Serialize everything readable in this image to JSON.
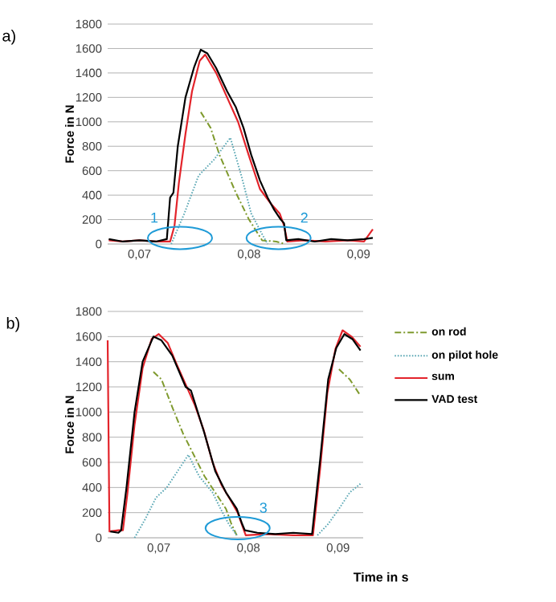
{
  "chart_data": [
    {
      "type": "line",
      "title": "a)",
      "ylabel": "Force in N",
      "xlim": [
        0.0671,
        0.0913
      ],
      "ylim": [
        0,
        1800
      ],
      "xticks": [
        {
          "value": 0.07,
          "label": "0,07"
        },
        {
          "value": 0.08,
          "label": "0,08"
        },
        {
          "value": 0.09,
          "label": "0,09"
        }
      ],
      "yticks": [
        0,
        200,
        400,
        600,
        800,
        1000,
        1200,
        1400,
        1600,
        1800
      ],
      "grid": "y",
      "legend": false,
      "series": [
        {
          "color": "#7f9a2e",
          "line_style": "dashed",
          "x": [
            0.0756,
            0.0765,
            0.0773,
            0.0788,
            0.08,
            0.0812,
            0.0825,
            0.0833
          ],
          "values": [
            1080,
            950,
            730,
            420,
            200,
            30,
            20,
            0
          ]
        },
        {
          "color": "#5aa7b4",
          "line_style": "dotted",
          "x": [
            0.0729,
            0.0741,
            0.0754,
            0.0768,
            0.0783,
            0.0793,
            0.0802,
            0.0812,
            0.0817
          ],
          "values": [
            0,
            250,
            560,
            690,
            870,
            560,
            250,
            80,
            0
          ]
        },
        {
          "color": "#e3242b",
          "line_style": "solid",
          "x": [
            0.0672,
            0.0685,
            0.07,
            0.0715,
            0.0728,
            0.0732,
            0.0736,
            0.0742,
            0.0748,
            0.0755,
            0.076,
            0.077,
            0.078,
            0.079,
            0.08,
            0.081,
            0.082,
            0.0828,
            0.0832,
            0.0835,
            0.085,
            0.087,
            0.089,
            0.0905,
            0.0913
          ],
          "values": [
            30,
            20,
            30,
            20,
            20,
            150,
            500,
            900,
            1250,
            1500,
            1550,
            1400,
            1200,
            1000,
            720,
            450,
            330,
            250,
            150,
            20,
            30,
            20,
            30,
            20,
            120
          ]
        },
        {
          "color": "#000000",
          "line_style": "solid",
          "x": [
            0.0672,
            0.0685,
            0.07,
            0.0715,
            0.0725,
            0.0728,
            0.0731,
            0.0735,
            0.0742,
            0.075,
            0.0756,
            0.0762,
            0.077,
            0.078,
            0.0788,
            0.0795,
            0.0802,
            0.081,
            0.0817,
            0.0823,
            0.0829,
            0.0832,
            0.0834,
            0.0845,
            0.086,
            0.0875,
            0.089,
            0.0905,
            0.0913
          ],
          "values": [
            40,
            20,
            30,
            20,
            40,
            380,
            420,
            800,
            1200,
            1450,
            1590,
            1560,
            1440,
            1250,
            1120,
            950,
            730,
            520,
            380,
            280,
            200,
            170,
            30,
            40,
            20,
            40,
            30,
            40,
            50
          ]
        }
      ],
      "annotations": [
        {
          "text": "1",
          "x": 0.0737,
          "y": 50
        },
        {
          "text": "2",
          "x": 0.0827,
          "y": 50
        }
      ]
    },
    {
      "type": "line",
      "title": "b)",
      "xlabel": "Time in s",
      "ylabel": "Force in N",
      "xlim": [
        0.0643,
        0.0928
      ],
      "ylim": [
        0,
        1800
      ],
      "xticks": [
        {
          "value": 0.07,
          "label": "0,07"
        },
        {
          "value": 0.08,
          "label": "0,08"
        },
        {
          "value": 0.09,
          "label": "0,09"
        }
      ],
      "yticks": [
        0,
        200,
        400,
        600,
        800,
        1000,
        1200,
        1400,
        1600,
        1800
      ],
      "grid": "y",
      "legend": "right",
      "series": [
        {
          "name": "on rod",
          "color": "#7f9a2e",
          "line_style": "dashed",
          "x": [
            0.0694,
            0.0703,
            0.0715,
            0.0727,
            0.0739,
            0.0751,
            0.0763,
            0.0775,
            0.0781,
            0.0787
          ],
          "values": [
            1320,
            1260,
            1040,
            830,
            660,
            490,
            360,
            230,
            110,
            20
          ]
        },
        {
          "name": "on pilot hole",
          "color": "#5aa7b4",
          "line_style": "dotted",
          "x": [
            0.0673,
            0.0685,
            0.0697,
            0.0709,
            0.0721,
            0.0733,
            0.0745,
            0.076,
            0.0769,
            0.0778,
            0.0787
          ],
          "values": [
            0,
            150,
            320,
            400,
            530,
            660,
            490,
            360,
            230,
            110,
            20
          ]
        },
        {
          "name": "sum",
          "color": "#e3242b",
          "line_style": "solid",
          "x": [
            0.0643,
            0.0645,
            0.0655,
            0.066,
            0.0665,
            0.0673,
            0.0682,
            0.0692,
            0.07,
            0.071,
            0.072,
            0.073,
            0.074,
            0.075,
            0.076,
            0.077,
            0.078,
            0.0788,
            0.0793,
            0.0797,
            0.082,
            0.085,
            0.0872,
            0.088,
            0.0888,
            0.0897,
            0.0905,
            0.0915,
            0.0925
          ],
          "values": [
            1570,
            50,
            60,
            60,
            350,
            900,
            1350,
            1580,
            1620,
            1550,
            1380,
            1220,
            1060,
            860,
            600,
            420,
            300,
            200,
            100,
            20,
            30,
            20,
            20,
            550,
            1150,
            1500,
            1650,
            1600,
            1520
          ]
        },
        {
          "name": "VAD test",
          "color": "#000000",
          "line_style": "solid",
          "x": [
            0.0646,
            0.0655,
            0.0658,
            0.0664,
            0.0673,
            0.0682,
            0.0694,
            0.0703,
            0.0715,
            0.073,
            0.0736,
            0.0751,
            0.0763,
            0.0775,
            0.0787,
            0.0793,
            0.0796,
            0.081,
            0.083,
            0.085,
            0.0871,
            0.088,
            0.0889,
            0.0898,
            0.0907,
            0.0916,
            0.0925
          ],
          "values": [
            50,
            40,
            60,
            400,
            1000,
            1400,
            1600,
            1570,
            1450,
            1200,
            1170,
            830,
            530,
            360,
            230,
            110,
            60,
            40,
            30,
            40,
            30,
            620,
            1260,
            1510,
            1620,
            1580,
            1490
          ]
        },
        {
          "color": "#7f9a2e",
          "line_style": "dashed",
          "x": [
            0.0901,
            0.0913,
            0.0925
          ],
          "values": [
            1340,
            1260,
            1130
          ]
        },
        {
          "color": "#5aa7b4",
          "line_style": "dotted",
          "x": [
            0.0877,
            0.0889,
            0.0901,
            0.0913,
            0.0925
          ],
          "values": [
            20,
            110,
            230,
            360,
            430
          ]
        }
      ],
      "annotations": [
        {
          "text": "3",
          "x": 0.0788,
          "y": 77
        }
      ]
    }
  ]
}
